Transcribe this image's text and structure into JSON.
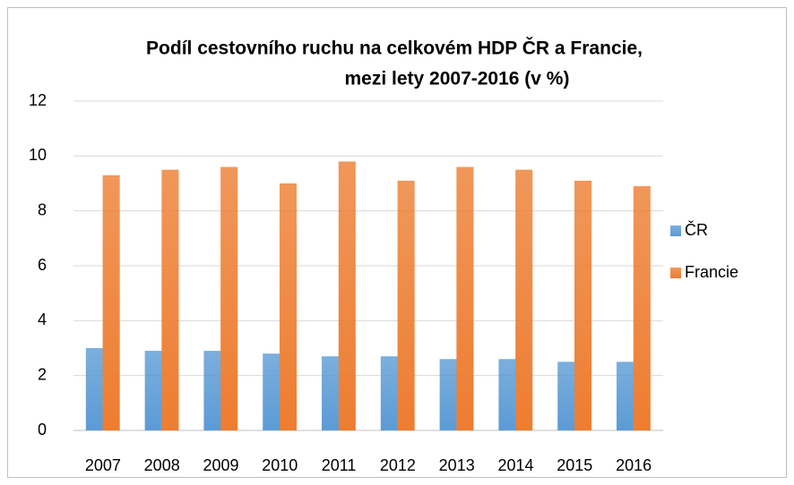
{
  "chart_data": {
    "type": "bar",
    "title": [
      "Podíl cestovního ruchu na celkovém HDP ČR a Francie,",
      "mezi lety 2007-2016 (v %)"
    ],
    "categories": [
      "2007",
      "2008",
      "2009",
      "2010",
      "2011",
      "2012",
      "2013",
      "2014",
      "2015",
      "2016"
    ],
    "series": [
      {
        "name": "ČR",
        "color": "#5b9bd5",
        "values": [
          3.0,
          2.9,
          2.9,
          2.8,
          2.7,
          2.7,
          2.6,
          2.6,
          2.5,
          2.5
        ]
      },
      {
        "name": "Francie",
        "color": "#ed7d31",
        "values": [
          9.3,
          9.5,
          9.6,
          9.0,
          9.8,
          9.1,
          9.6,
          9.5,
          9.1,
          8.9
        ]
      }
    ],
    "ylim": [
      0,
      12
    ],
    "yticks": [
      0,
      2,
      4,
      6,
      8,
      10,
      12
    ],
    "grid": true,
    "legend": "right"
  }
}
